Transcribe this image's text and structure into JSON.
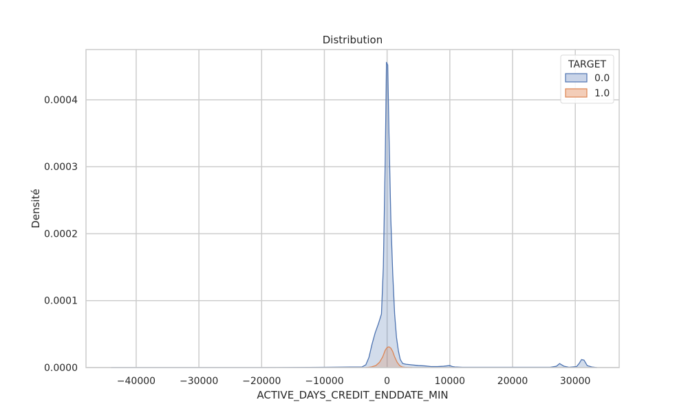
{
  "chart_data": {
    "type": "area",
    "title": "Distribution",
    "xlabel": "ACTIVE_DAYS_CREDIT_ENDDATE_MIN",
    "ylabel": "Densité",
    "xlim": [
      -48000,
      37000
    ],
    "ylim": [
      0,
      0.000475
    ],
    "xticks": [
      -40000,
      -30000,
      -20000,
      -10000,
      0,
      10000,
      20000,
      30000
    ],
    "xtick_labels": [
      "−40000",
      "−30000",
      "−20000",
      "−10000",
      "0",
      "10000",
      "20000",
      "30000"
    ],
    "yticks": [
      0,
      0.0001,
      0.0002,
      0.0003,
      0.0004
    ],
    "ytick_labels": [
      "0.0000",
      "0.0001",
      "0.0002",
      "0.0003",
      "0.0004"
    ],
    "grid": true,
    "legend": {
      "title": "TARGET",
      "position": "top-right"
    },
    "series": [
      {
        "name": "0.0",
        "color": "#4c72b0",
        "fill": "#c9d4e8",
        "x": [
          -44000,
          -30000,
          -20000,
          -10000,
          -4000,
          -3400,
          -2900,
          -2400,
          -1900,
          -1400,
          -900,
          -600,
          -300,
          -100,
          100,
          300,
          600,
          900,
          1200,
          1500,
          1800,
          2100,
          2500,
          3000,
          4000,
          5000,
          6000,
          7000,
          8000,
          9000,
          10000,
          10400,
          10800,
          12000,
          20000,
          26000,
          27000,
          27500,
          28200,
          29000,
          30200,
          30600,
          31000,
          31400,
          31900,
          32600,
          33500
        ],
        "y": [
          0,
          0,
          0,
          5e-07,
          1e-06,
          4e-06,
          1.5e-05,
          3.5e-05,
          5.2e-05,
          6.5e-05,
          8e-05,
          0.00015,
          0.00031,
          0.000456,
          0.000452,
          0.00035,
          0.00022,
          0.00014,
          8e-05,
          4.5e-05,
          2.5e-05,
          1.2e-05,
          6e-06,
          5e-06,
          4e-06,
          3e-06,
          2.5e-06,
          1.5e-06,
          1.5e-06,
          2e-06,
          3e-06,
          1.5e-06,
          1e-06,
          5e-07,
          5e-07,
          5e-07,
          2e-06,
          6e-06,
          2e-06,
          5e-07,
          1.5e-06,
          6e-06,
          1.2e-05,
          1.1e-05,
          3e-06,
          1e-06,
          0
        ]
      },
      {
        "name": "1.0",
        "color": "#dd8452",
        "fill": "#f3cdb8",
        "x": [
          -3400,
          -2500,
          -1800,
          -1200,
          -700,
          -300,
          0,
          300,
          600,
          900,
          1200,
          1600,
          2000,
          2400,
          3000,
          4000
        ],
        "y": [
          0,
          1e-06,
          3e-06,
          8e-06,
          1.6e-05,
          2.6e-05,
          3e-05,
          3.1e-05,
          2.9e-05,
          2.4e-05,
          1.6e-05,
          8e-06,
          3e-06,
          1e-06,
          3e-07,
          0
        ]
      }
    ]
  }
}
